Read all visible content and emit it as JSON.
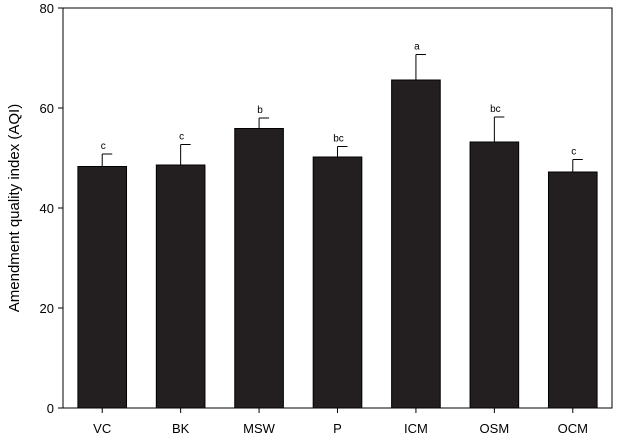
{
  "chart_data": {
    "type": "bar",
    "categories": [
      "VC",
      "BK",
      "MSW",
      "P",
      "ICM",
      "OSM",
      "OCM"
    ],
    "values": [
      48.3,
      48.6,
      55.9,
      50.2,
      65.6,
      53.2,
      47.2
    ],
    "error_plus": [
      2.5,
      4.1,
      2.1,
      2.1,
      5.1,
      5.0,
      2.5
    ],
    "significance_letters": [
      "c",
      "c",
      "b",
      "bc",
      "a",
      "bc",
      "c"
    ],
    "title": "",
    "xlabel": "",
    "ylabel": "Amendment quality index (AQI)",
    "ylim": [
      0,
      80
    ],
    "yticks": [
      0,
      20,
      40,
      60,
      80
    ],
    "grid": false,
    "bar_color": "#231f20"
  }
}
